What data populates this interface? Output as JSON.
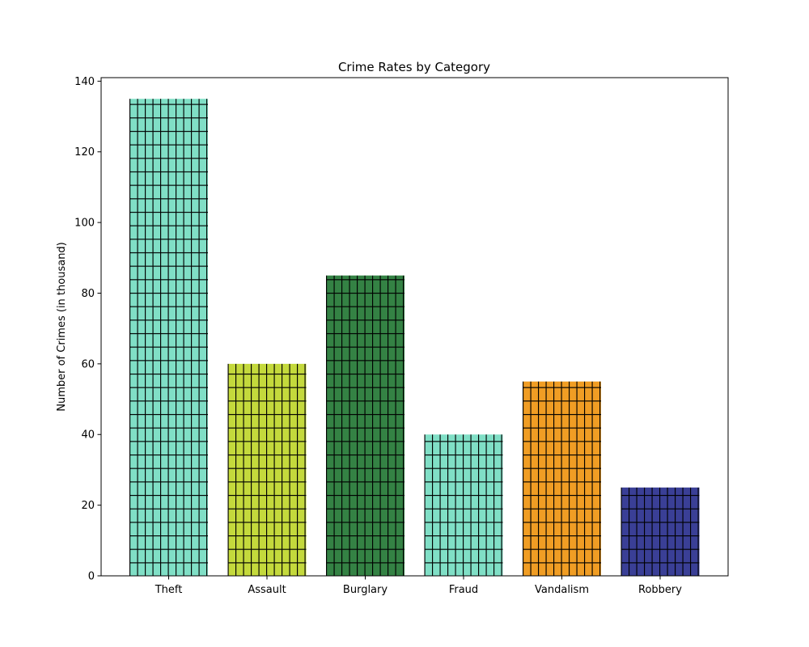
{
  "chart_data": {
    "type": "bar",
    "title": "Crime Rates by Category",
    "xlabel": "",
    "ylabel": "Number of Crimes (in thousand)",
    "categories": [
      "Theft",
      "Assault",
      "Burglary",
      "Fraud",
      "Vandalism",
      "Robbery"
    ],
    "values": [
      135,
      60,
      85,
      40,
      55,
      25
    ],
    "colors": [
      "#80dfc6",
      "#c4d93c",
      "#348244",
      "#80dfc6",
      "#f09d24",
      "#3a3f96"
    ],
    "ylim": [
      0,
      141
    ],
    "yticks": [
      0,
      20,
      40,
      60,
      80,
      100,
      120,
      140
    ],
    "grid": false
  }
}
